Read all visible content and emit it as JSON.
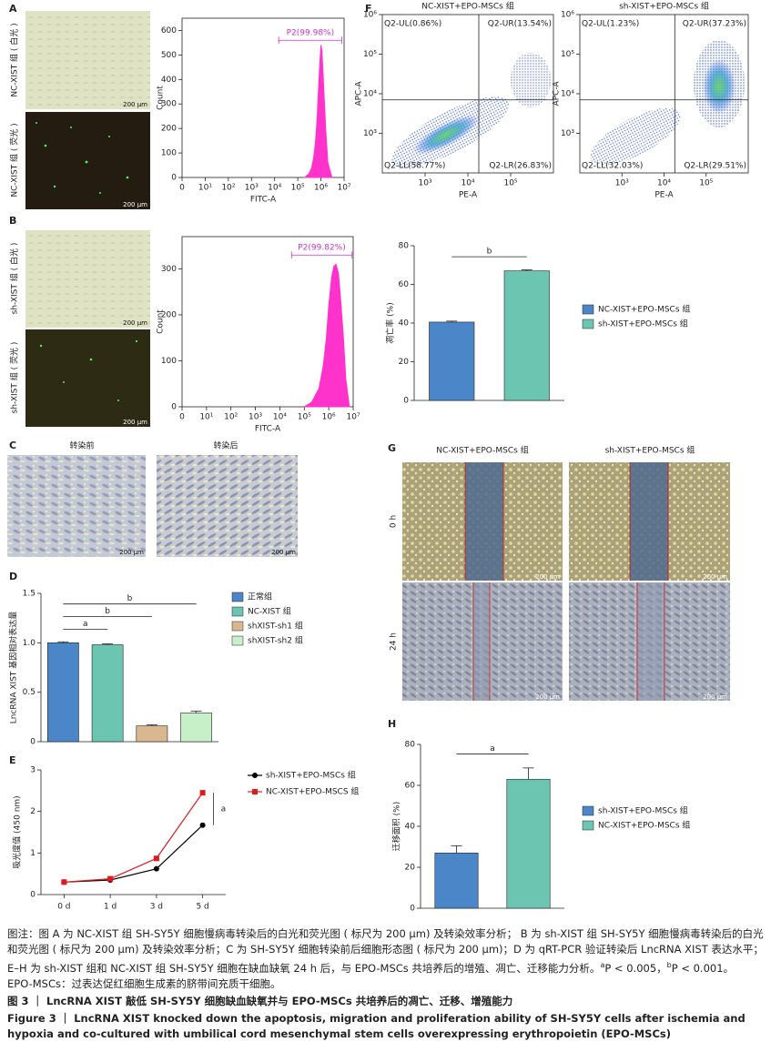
{
  "labels": [
    "A",
    "B",
    "C",
    "D",
    "E",
    "F",
    "G",
    "H"
  ],
  "scale_bar": "200 μm",
  "panel_a": {
    "row_labels": [
      "NC-XIST 组 ( 白光 )",
      "NC-XIST 组 ( 荧光 )"
    ]
  },
  "panel_b": {
    "row_labels": [
      "sh-XIST 组 ( 白光 )",
      "sh-XIST 组 ( 荧光 )"
    ]
  },
  "panel_c": {
    "titles": [
      "转染前",
      "转染后"
    ]
  },
  "panel_g": {
    "titles": [
      "NC-XIST+EPO-MSCs 组",
      "sh-XIST+EPO-MSCs 组"
    ],
    "row_labels": [
      "0 h",
      "24 h"
    ]
  },
  "chart_data": [
    {
      "type": "area",
      "color": "#ff33cc",
      "log_x": true,
      "x": [
        200000,
        300000,
        400000,
        500000,
        600000,
        700000,
        800000,
        900000,
        1000000,
        1100000,
        1300000,
        1600000,
        2000000,
        3000000
      ],
      "values": [
        0,
        15,
        40,
        90,
        160,
        260,
        380,
        470,
        540,
        520,
        380,
        200,
        60,
        0
      ],
      "xlim": [
        1,
        10000000
      ],
      "xticks": [
        {
          "value": 1,
          "label": "0"
        },
        {
          "value": 10,
          "label": "10¹"
        },
        {
          "value": 100,
          "label": "10²"
        },
        {
          "value": 1000,
          "label": "10³"
        },
        {
          "value": 10000,
          "label": "10⁴"
        },
        {
          "value": 100000,
          "label": "10⁵"
        },
        {
          "value": 1000000,
          "label": "10⁶"
        },
        {
          "value": 10000000,
          "label": "10⁷"
        }
      ],
      "ylim": [
        0,
        650
      ],
      "yticks": [
        0,
        100,
        200,
        300,
        400,
        500,
        600
      ],
      "xlabel": "FITC-A",
      "ylabel": "Count",
      "gate": {
        "label": "P2(99.98%)",
        "range": [
          15000,
          8000000
        ],
        "level": 560,
        "color": "#cc33cc"
      }
    },
    {
      "type": "area",
      "color": "#ff33cc",
      "log_x": true,
      "x": [
        100000,
        200000,
        400000,
        600000,
        800000,
        1000000,
        1300000,
        1600000,
        2000000,
        2500000,
        3000000,
        4000000,
        5000000,
        7000000
      ],
      "values": [
        0,
        10,
        40,
        90,
        150,
        220,
        280,
        305,
        310,
        290,
        240,
        150,
        60,
        0
      ],
      "xlim": [
        1,
        10000000
      ],
      "xticks": [
        {
          "value": 1,
          "label": "0"
        },
        {
          "value": 10,
          "label": "10¹"
        },
        {
          "value": 100,
          "label": "10²"
        },
        {
          "value": 1000,
          "label": "10³"
        },
        {
          "value": 10000,
          "label": "10⁴"
        },
        {
          "value": 100000,
          "label": "10⁵"
        },
        {
          "value": 1000000,
          "label": "10⁶"
        },
        {
          "value": 10000000,
          "label": "10⁷"
        }
      ],
      "ylim": [
        0,
        370
      ],
      "yticks": [
        0,
        100,
        200,
        300
      ],
      "xlabel": "FITC-A",
      "ylabel": "Count",
      "gate": {
        "label": "P2(99.82%)",
        "range": [
          30000,
          9000000
        ],
        "level": 330,
        "color": "#cc33cc"
      }
    },
    {
      "type": "scatter_density",
      "title": "NC-XIST+EPO-MSCs 组",
      "log_x": true,
      "log_y": true,
      "xlim": [
        100,
        1000000
      ],
      "xticks": [
        {
          "value": 1000,
          "label": "10³"
        },
        {
          "value": 10000,
          "label": "10⁴"
        },
        {
          "value": 100000,
          "label": "10⁵"
        }
      ],
      "ylim": [
        100,
        1000000
      ],
      "yticks": [
        {
          "value": 1000,
          "label": "10³"
        },
        {
          "value": 10000,
          "label": "10⁴"
        },
        {
          "value": 100000,
          "label": "10⁵"
        },
        {
          "value": 1000000,
          "label": "10⁶"
        }
      ],
      "xlabel": "PE-A",
      "ylabel": "APC-A",
      "quadrant": {
        "x": 18000,
        "y": 7000
      },
      "quadrant_labels": {
        "UL": "Q2-UL(0.86%)",
        "UR": "Q2-UR(13.54%)",
        "LL": "Q2-LL(58.77%)",
        "LR": "Q2-LR(26.83%)"
      }
    },
    {
      "type": "scatter_density",
      "title": "sh-XIST+EPO-MSCs 组",
      "log_x": true,
      "log_y": true,
      "xlim": [
        100,
        1000000
      ],
      "xticks": [
        {
          "value": 1000,
          "label": "10³"
        },
        {
          "value": 10000,
          "label": "10⁴"
        },
        {
          "value": 100000,
          "label": "10⁵"
        }
      ],
      "ylim": [
        100,
        1000000
      ],
      "yticks": [
        {
          "value": 1000,
          "label": "10³"
        },
        {
          "value": 10000,
          "label": "10⁴"
        },
        {
          "value": 100000,
          "label": "10⁵"
        },
        {
          "value": 1000000,
          "label": "10⁶"
        }
      ],
      "xlabel": "PE-A",
      "ylabel": "APC-A",
      "quadrant": {
        "x": 18000,
        "y": 7000
      },
      "quadrant_labels": {
        "UL": "Q2-UL(1.23%)",
        "UR": "Q2-UR(37.23%)",
        "LL": "Q2-LL(32.03%)",
        "LR": "Q2-LR(29.51%)"
      }
    },
    {
      "type": "bar",
      "categories": [
        "NC-XIST+EPO-MSCs 组",
        "sh-XIST+EPO-MSCs 组"
      ],
      "values": [
        40.5,
        67
      ],
      "errors": [
        0.5,
        0.5
      ],
      "colors": [
        "#4a86c8",
        "#6cc5b0"
      ],
      "ylim": [
        0,
        80
      ],
      "yticks": [
        0,
        20,
        40,
        60,
        80
      ],
      "ylabel": "凋亡率 (%)",
      "significance": [
        {
          "pair": [
            0,
            1
          ],
          "label": "b"
        }
      ]
    },
    {
      "type": "bar",
      "categories": [
        "正常组",
        "NC-XIST 组",
        "shXIST-sh1 组",
        "shXIST-sh2 组"
      ],
      "values": [
        1.0,
        0.98,
        0.16,
        0.29
      ],
      "errors": [
        0.01,
        0.01,
        0.01,
        0.02
      ],
      "colors": [
        "#4a86c8",
        "#6cc5b0",
        "#d9b88f",
        "#c8f0c8"
      ],
      "ylim": [
        0,
        1.5
      ],
      "yticks": [
        0,
        0.5,
        {
          "value": 1,
          "label": "1.0"
        },
        1.5
      ],
      "ylabel": "LncRNA XIST 基因相对表达量",
      "significance": [
        {
          "pair": [
            0,
            1
          ],
          "label": "a"
        },
        {
          "pair": [
            0,
            2
          ],
          "label": "b"
        },
        {
          "pair": [
            0,
            3
          ],
          "label": "b"
        }
      ]
    },
    {
      "type": "line",
      "categories": [
        "0 d",
        "1 d",
        "3 d",
        "5 d"
      ],
      "series": [
        {
          "name": "sh-XIST+EPO-MSCs 组",
          "color": "#000000",
          "marker": "circle",
          "values": [
            0.3,
            0.35,
            0.62,
            1.67
          ]
        },
        {
          "name": "NC-XIST+EPO-MSCS 组",
          "color": "#e0191e",
          "marker": "square",
          "values": [
            0.3,
            0.38,
            0.87,
            2.45
          ]
        }
      ],
      "ylim": [
        0,
        3
      ],
      "yticks": [
        0,
        1,
        2,
        3
      ],
      "ylabel": "吸光度值 (450 nm)",
      "significance": {
        "label": "a"
      }
    },
    {
      "type": "bar",
      "categories": [
        "sh-XIST+EPO-MSCs 组",
        "NC-XIST+EPO-MSCs 组"
      ],
      "values": [
        27,
        63
      ],
      "errors": [
        3.5,
        5.5
      ],
      "colors": [
        "#4a86c8",
        "#6cc5b0"
      ],
      "ylim": [
        0,
        80
      ],
      "yticks": [
        0,
        20,
        40,
        60,
        80
      ],
      "ylabel": "迁移面积 (%)",
      "significance": [
        {
          "pair": [
            0,
            1
          ],
          "label": "a"
        }
      ]
    }
  ],
  "caption": {
    "text": "图注：图 A 为 NC-XIST 组 SH-SY5Y 细胞慢病毒转染后的白光和荧光图 ( 标尺为 200 μm) 及转染效率分析； B 为 sh-XIST 组 SH-SY5Y 细胞慢病毒转染后的白光和荧光图 ( 标尺为 200 μm) 及转染效率分析；C 为 SH-SY5Y 细胞转染前后细胞形态图 ( 标尺为 200 μm)；D 为 qRT-PCR 验证转染后 LncRNA XIST 表达水平；E–H 为 sh-XIST 组和 NC-XIST 组 SH-SY5Y 细胞在缺血缺氧 24 h 后，与 EPO-MSCs 共培养后的增殖、凋亡、迁移能力分析。",
    "sig": [
      {
        "mark": "a",
        "text": "P < 0.005，"
      },
      {
        "mark": "b",
        "text": "P < 0.001。"
      }
    ],
    "abbr": "EPO-MSCs：过表达促红细胞生成素的脐带间充质干细胞。",
    "title_cn": "图 3 ｜ LncRNA XIST 敲低 SH-SY5Y 细胞缺血缺氧并与 EPO-MSCs 共培养后的凋亡、迁移、增殖能力",
    "title_en": "Figure 3 ｜ LncRNA XIST knocked down the apoptosis, migration and proliferation ability of SH-SY5Y cells after ischemia and hypoxia and co-cultured with umbilical cord mesenchymal stem cells overexpressing erythropoietin (EPO-MSCs)"
  }
}
